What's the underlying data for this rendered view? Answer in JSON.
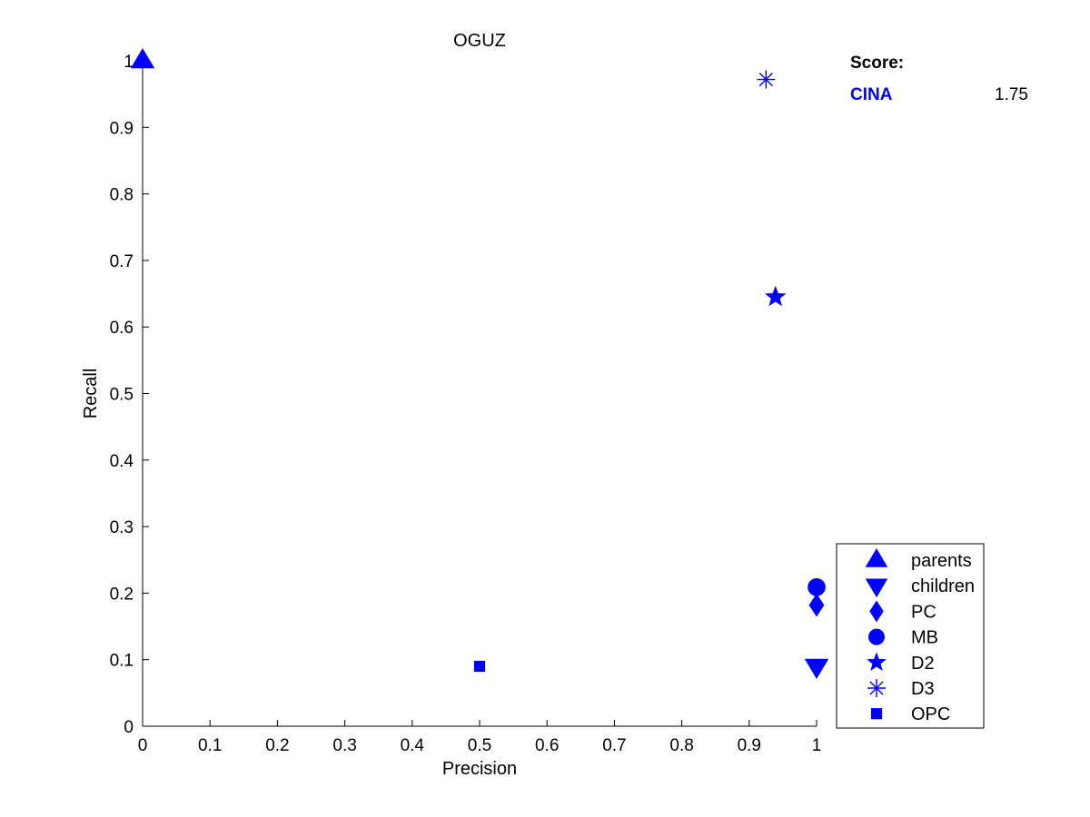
{
  "chart_data": {
    "type": "scatter",
    "title": "OGUZ",
    "xlabel": "Precision",
    "ylabel": "Recall",
    "xlim": [
      0,
      1
    ],
    "ylim": [
      0,
      1
    ],
    "xticks": [
      "0",
      "0.1",
      "0.2",
      "0.3",
      "0.4",
      "0.5",
      "0.6",
      "0.7",
      "0.8",
      "0.9",
      "1"
    ],
    "yticks": [
      "0",
      "0.1",
      "0.2",
      "0.3",
      "0.4",
      "0.5",
      "0.6",
      "0.7",
      "0.8",
      "0.9",
      "1"
    ],
    "grid": false,
    "legend_position": "bottom-right",
    "color": "#0000ff",
    "series": [
      {
        "name": "parents",
        "marker": "triangle-up",
        "x": 0.0,
        "y": 1.0
      },
      {
        "name": "children",
        "marker": "triangle-down",
        "x": 1.0,
        "y": 0.09
      },
      {
        "name": "PC",
        "marker": "diamond",
        "x": 1.0,
        "y": 0.182
      },
      {
        "name": "MB",
        "marker": "circle",
        "x": 1.0,
        "y": 0.209
      },
      {
        "name": "D2",
        "marker": "star",
        "x": 0.939,
        "y": 0.645
      },
      {
        "name": "D3",
        "marker": "asterisk",
        "x": 0.925,
        "y": 0.972
      },
      {
        "name": "OPC",
        "marker": "square",
        "x": 0.5,
        "y": 0.09
      }
    ],
    "annotation": {
      "heading": "Score:",
      "name": "CINA",
      "name_color": "#0000ff",
      "value": "1.75"
    }
  }
}
